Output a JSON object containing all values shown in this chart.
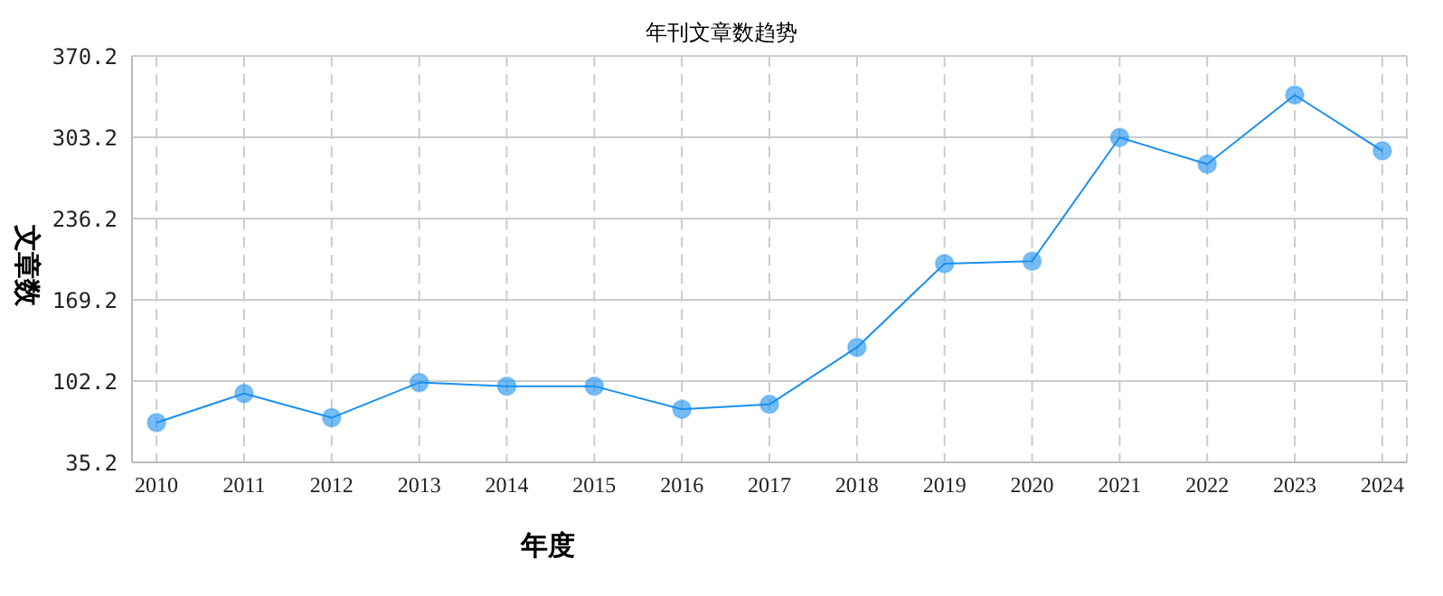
{
  "chart_data": {
    "type": "line",
    "title": "年刊文章数趋势",
    "xlabel": "年度",
    "ylabel": "文章数",
    "categories": [
      "2010",
      "2011",
      "2012",
      "2013",
      "2014",
      "2015",
      "2016",
      "2017",
      "2018",
      "2019",
      "2020",
      "2021",
      "2022",
      "2023",
      "2024"
    ],
    "series": [
      {
        "color": "#1a90f0",
        "values": [
          68,
          92,
          72,
          101,
          98,
          98,
          79,
          83,
          130,
          199,
          201,
          303,
          281,
          338,
          292
        ]
      }
    ],
    "ylim": [
      35.2,
      370.2
    ],
    "yticks": [
      35.2,
      102.2,
      169.2,
      236.2,
      303.2,
      370.2
    ],
    "grid": true,
    "marker": "circle",
    "line_style": "solid",
    "legend": false
  }
}
